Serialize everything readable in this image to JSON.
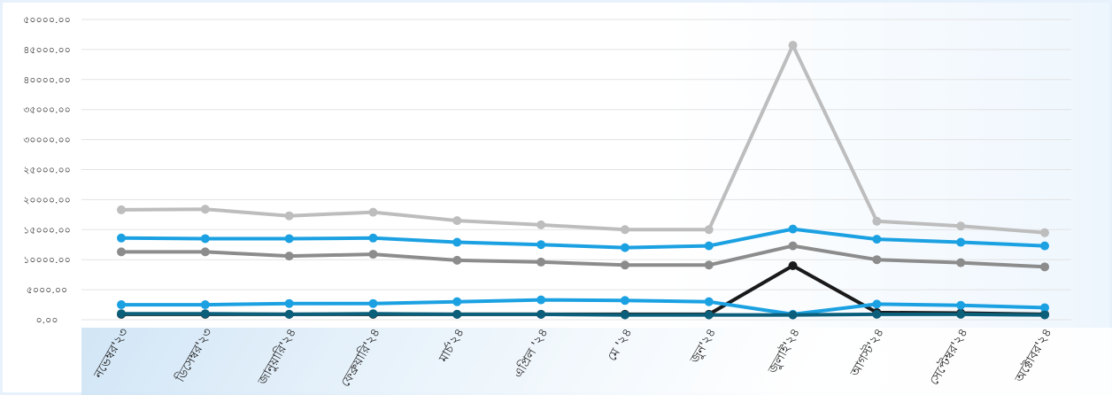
{
  "chart_data": {
    "type": "line",
    "title": "",
    "xlabel": "",
    "ylabel": "",
    "ylim": [
      0,
      50000
    ],
    "y_ticks": [
      {
        "value": 0,
        "label": "০.০০"
      },
      {
        "value": 5000,
        "label": "৫০০০.০০"
      },
      {
        "value": 10000,
        "label": "১০০০০.০০"
      },
      {
        "value": 15000,
        "label": "১৫০০০.০০"
      },
      {
        "value": 20000,
        "label": "২০০০০.০০"
      },
      {
        "value": 25000,
        "label": "২৫০০০.০০"
      },
      {
        "value": 30000,
        "label": "৩০০০০.০০"
      },
      {
        "value": 35000,
        "label": "৩৫০০০.০০"
      },
      {
        "value": 40000,
        "label": "৪০০০০.০০"
      },
      {
        "value": 45000,
        "label": "৪৫০০০.০০"
      },
      {
        "value": 50000,
        "label": "৫০০০০.০০"
      }
    ],
    "categories": [
      "নভেম্বর'২৩",
      "ডিসেম্বর'২৩",
      "জানুয়ারি'২৪",
      "ফেব্রুয়ারি'২৪",
      "মার্চ'২৪",
      "এপ্রিল '২৪",
      "মে '২৪",
      "জুন'২৪",
      "জুলাই'২৪",
      "আগস্ট'২৪",
      "সেপ্টেম্বর'২৪",
      "অক্টোবর'২৪"
    ],
    "grid": true,
    "legend": "none",
    "series": [
      {
        "color": "#bdbdbd",
        "values": [
          18300,
          18400,
          17300,
          17900,
          16500,
          15800,
          15000,
          15000,
          45700,
          16400,
          15600,
          14500
        ]
      },
      {
        "color": "#1ba1e2",
        "values": [
          13600,
          13500,
          13500,
          13600,
          12900,
          12500,
          12000,
          12300,
          15100,
          13400,
          12900,
          12300
        ]
      },
      {
        "color": "#8c8c8c",
        "values": [
          11300,
          11300,
          10600,
          10900,
          9900,
          9600,
          9100,
          9100,
          12300,
          10000,
          9500,
          8800
        ]
      },
      {
        "color": "#1a1a1a",
        "values": [
          900,
          900,
          900,
          900,
          900,
          900,
          900,
          900,
          9000,
          1200,
          1100,
          900
        ]
      },
      {
        "color": "#1ba1e2",
        "values": [
          2500,
          2500,
          2700,
          2700,
          3000,
          3300,
          3200,
          3000,
          900,
          2600,
          2400,
          2000
        ]
      },
      {
        "color": "#0b5f7a",
        "values": [
          1000,
          1000,
          900,
          1000,
          900,
          900,
          800,
          800,
          800,
          900,
          900,
          800
        ]
      }
    ]
  }
}
